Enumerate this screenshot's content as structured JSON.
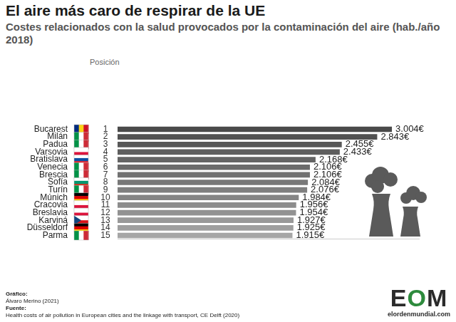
{
  "chart_data": {
    "type": "bar",
    "orientation": "horizontal",
    "title": "El aire más caro de respirar de la UE",
    "subtitle": "Costes relacionados con la salud provocados por la contaminación del aire (hab./año 2018)",
    "position_header": "Posición",
    "positions": [
      1,
      2,
      3,
      4,
      5,
      6,
      7,
      8,
      9,
      10,
      11,
      12,
      13,
      14,
      15
    ],
    "categories": [
      "Bucarest",
      "Milán",
      "Padua",
      "Varsovia",
      "Bratislava",
      "Venecia",
      "Brescia",
      "Sofía",
      "Turín",
      "Múnich",
      "Cracovia",
      "Breslavia",
      "Karviná",
      "Düsseldorf",
      "Parma"
    ],
    "values": [
      3004,
      2843,
      2455,
      2433,
      2168,
      2106,
      2106,
      2084,
      2076,
      1984,
      1956,
      1954,
      1927,
      1925,
      1915
    ],
    "value_labels": [
      "3.004€",
      "2.843€",
      "2.455€",
      "2.433€",
      "2.168€",
      "2.106€",
      "2.106€",
      "2.084€",
      "2.076€",
      "1.984€",
      "1.956€",
      "1.954€",
      "1.927€",
      "1.925€",
      "1.915€"
    ],
    "colors": [
      "#4a4a4a",
      "#515151",
      "#575757",
      "#5e5e5e",
      "#646464",
      "#6b6b6b",
      "#717171",
      "#787878",
      "#7f7f7f",
      "#858585",
      "#8c8c8c",
      "#929292",
      "#999999",
      "#9f9f9f",
      "#a6a6a6"
    ],
    "xlim": [
      0,
      3300
    ],
    "tick_labels": "y",
    "grid": false,
    "data_labels": true
  },
  "credits": {
    "graphic_label": "Gráfico:",
    "graphic": "Álvaro Merino (2021)",
    "source_label": "Fuente:",
    "source": "Health costs of air pollution in European cities and the linkage with transport, CE Delft (2020)"
  },
  "logo": {
    "mark": "EOM",
    "site": "elordenmundial.com"
  }
}
